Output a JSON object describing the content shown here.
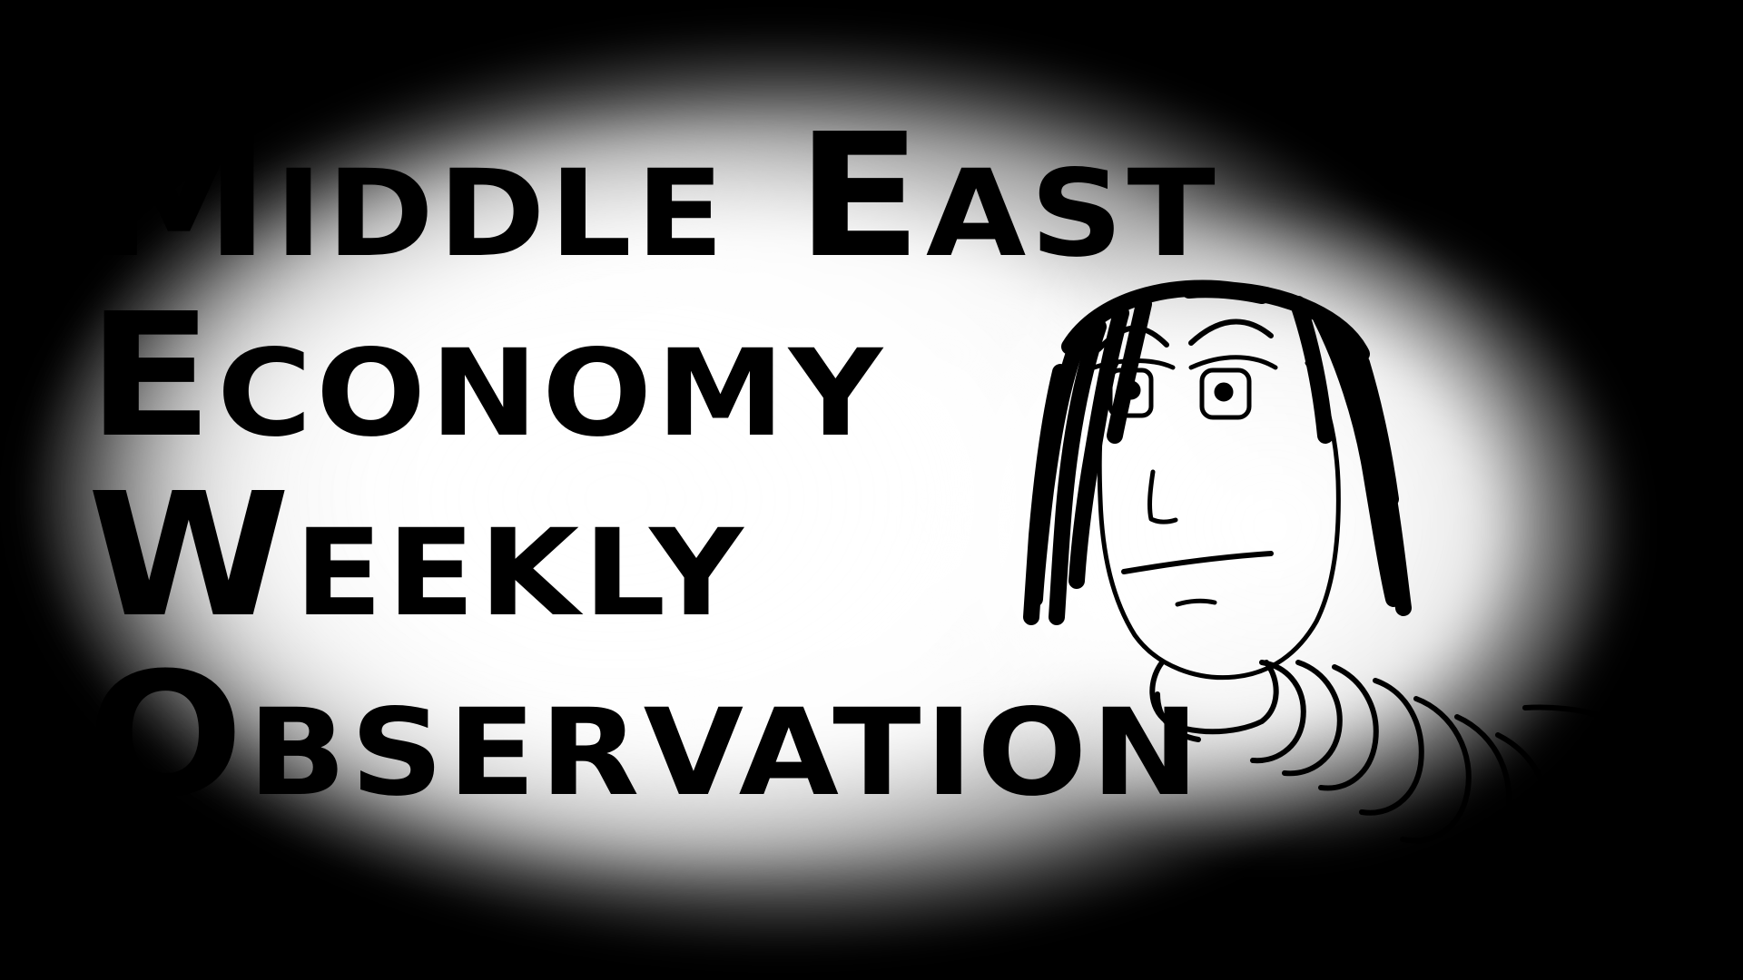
{
  "title": {
    "lines": [
      "Middle East",
      "Economy",
      "Weekly",
      "Observation"
    ]
  },
  "colors": {
    "background": "#000000",
    "glow": "#ffffff",
    "ink": "#000000"
  }
}
